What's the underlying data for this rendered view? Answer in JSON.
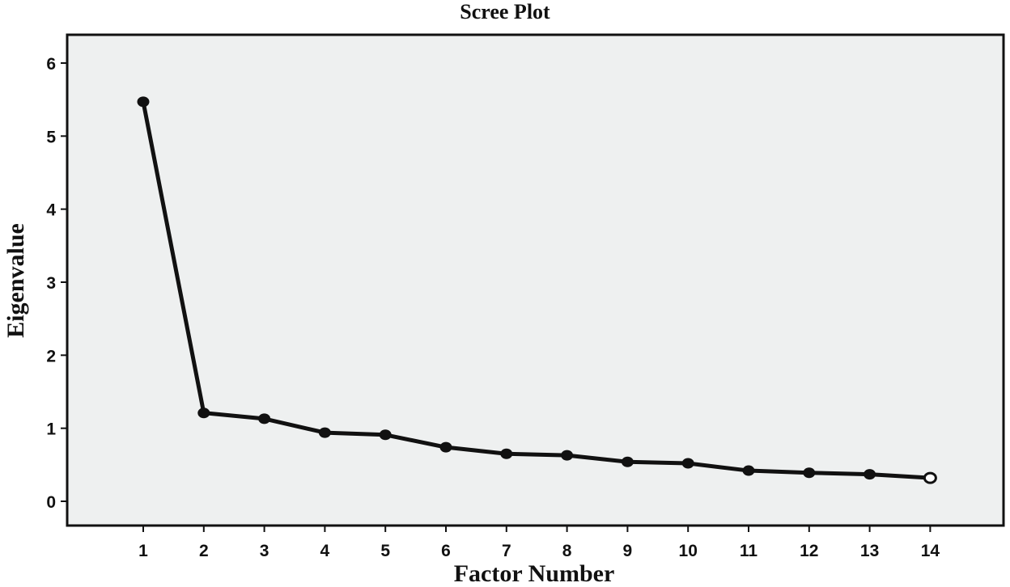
{
  "chart_data": {
    "type": "line",
    "title": "Scree Plot",
    "xlabel": "Factor Number",
    "ylabel": "Eigenvalue",
    "x": [
      1,
      2,
      3,
      4,
      5,
      6,
      7,
      8,
      9,
      10,
      11,
      12,
      13,
      14
    ],
    "values": [
      5.47,
      1.21,
      1.13,
      0.94,
      0.91,
      0.74,
      0.65,
      0.63,
      0.54,
      0.52,
      0.42,
      0.39,
      0.37,
      0.32
    ],
    "xticks": [
      "1",
      "2",
      "3",
      "4",
      "5",
      "6",
      "7",
      "8",
      "9",
      "10",
      "11",
      "12",
      "13",
      "14"
    ],
    "yticks": [
      "0",
      "1",
      "2",
      "3",
      "4",
      "5",
      "6"
    ],
    "ylim": [
      0,
      6
    ],
    "grid": false,
    "line_color": "#111111",
    "background": "#eef0f0"
  }
}
